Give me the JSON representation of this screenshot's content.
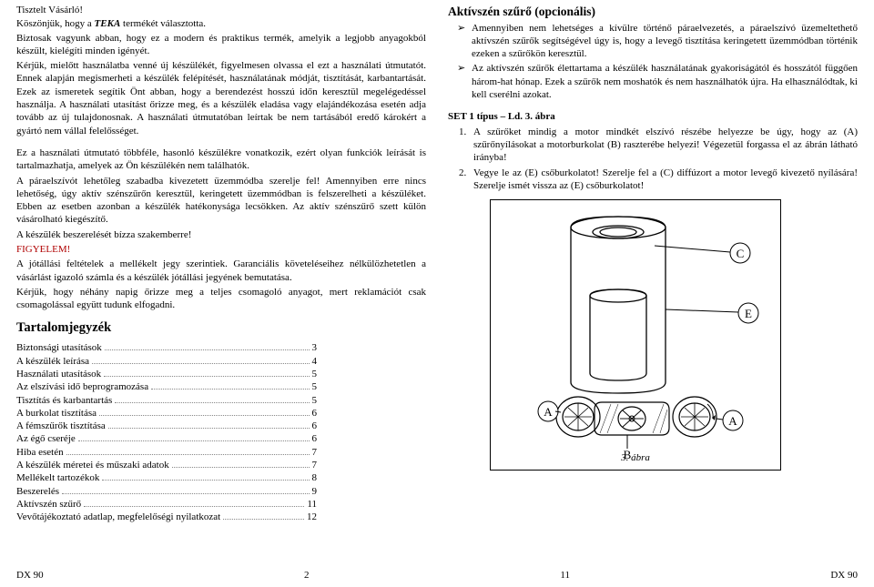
{
  "left": {
    "greeting": "Tisztelt Vásárló!",
    "thanks_pre": "Köszönjük, hogy a ",
    "brand": "TEKA",
    "thanks_post": " termékét választotta.",
    "p1": "Biztosak vagyunk abban, hogy ez a modern és praktikus termék, amelyik a legjobb anyagokból készült, kielégíti minden igényét.",
    "p2": "Kérjük, mielőtt használatba venné új készülékét, figyelmesen olvassa el ezt a használati útmutatót. Ennek alapján megismerheti a készülék felépítését, használatának módját, tisztítását, karbantartását. Ezek az ismeretek segítik Önt abban, hogy a berendezést hosszú időn keresztül megelégedéssel használja. A használati utasítást őrizze meg, és a készülék eladása vagy elajándékozása esetén adja tovább az új tulajdonosnak. A használati útmutatóban leírtak be nem tartásából eredő károkért a gyártó nem vállal felelősséget.",
    "p3": "Ez a használati útmutató többféle, hasonló készülékre vonatkozik, ezért olyan funkciók leírását is tartalmazhatja, amelyek az Ön készülékén nem találhatók.",
    "p4": "A páraelszívót lehetőleg szabadba kivezetett üzemmódba szerelje fel! Amennyiben erre nincs lehetőség, úgy aktív szénszűrőn keresztül, keringetett üzemmódban is felszerelheti a készüléket. Ebben az esetben azonban a készülék hatékonysága lecsökken. Az aktív szénszűrő szett külön vásárolható kiegészítő.",
    "p5": "A készülék beszerelését bízza szakemberre!",
    "warn_label": "FIGYELEM!",
    "p6": "A jótállási feltételek a mellékelt jegy szerintiek. Garanciális követeléseihez nélkülözhetetlen a vásárlást igazoló számla és a készülék jótállási jegyének bemutatása.",
    "p7": "Kérjük, hogy néhány napig őrizze meg a teljes csomagoló anyagot, mert reklamációt csak csomagolással együtt tudunk elfogadni.",
    "toc_title": "Tartalomjegyzék",
    "toc_width": 330,
    "toc_items": [
      {
        "label": "Biztonsági utasítások",
        "page": "3"
      },
      {
        "label": "A készülék leírása",
        "page": "4"
      },
      {
        "label": "Használati utasítások",
        "page": "5"
      },
      {
        "label": "Az elszívási idő beprogramozása",
        "page": "5"
      },
      {
        "label": "Tisztítás és karbantartás",
        "page": "5"
      },
      {
        "label": "A burkolat tisztítása",
        "page": "6"
      },
      {
        "label": "A fémszűrők tisztítása",
        "page": "6"
      },
      {
        "label": "Az égő cseréje",
        "page": "6"
      },
      {
        "label": "Hiba esetén",
        "page": "7"
      },
      {
        "label": "A készülék méretei és műszaki adatok",
        "page": "7"
      },
      {
        "label": "Mellékelt tartozékok",
        "page": "8"
      },
      {
        "label": "Beszerelés",
        "page": "9"
      },
      {
        "label": "Aktívszén szűrő",
        "page": "11"
      },
      {
        "label": "Vevőtájékoztató adatlap, megfelelőségi nyilatkozat",
        "page": "12"
      }
    ]
  },
  "right": {
    "title": "Aktívszén szűrő (opcionális)",
    "bullets": [
      "Amennyiben nem lehetséges a kívülre történő páraelvezetés, a páraelszívó üzemeltethető aktívszén szűrők segítségével úgy is, hogy a levegő tisztítása keringetett üzemmódban történik ezeken a szűrőkön keresztül.",
      "Az aktívszén szűrők élettartama a készülék használatának gyakoriságától és hosszától függően három-hat hónap. Ezek a szűrők nem moshatók és nem használhatók újra. Ha elhasználódtak, ki kell cserélni azokat."
    ],
    "set_title": "SET 1 típus – Ld. 3. ábra",
    "steps": [
      {
        "n": "1.",
        "t": "A szűrőket mindig a motor mindkét elszívó részébe helyezze be úgy, hogy az (A) szűrőnyílásokat a motorburkolat (B) raszterébe helyezi! Végezetül forgassa el az ábrán látható irányba!"
      },
      {
        "n": "2.",
        "t": "Vegye le az (E) csőburkolatot! Szerelje fel a (C) diffúzort a motor levegő kivezető nyílására! Szerelje ismét vissza az (E) csőburkolatot!"
      }
    ],
    "fig_caption": "3. ábra",
    "labels": {
      "C": "C",
      "E": "E",
      "A1": "A",
      "A2": "A",
      "B": "B"
    }
  },
  "footer": {
    "model_left": "DX 90",
    "page_left": "2",
    "page_right": "11",
    "model_right": "DX 90"
  },
  "colors": {
    "warn": "#b00000",
    "text": "#000000",
    "dots": "#888888"
  }
}
